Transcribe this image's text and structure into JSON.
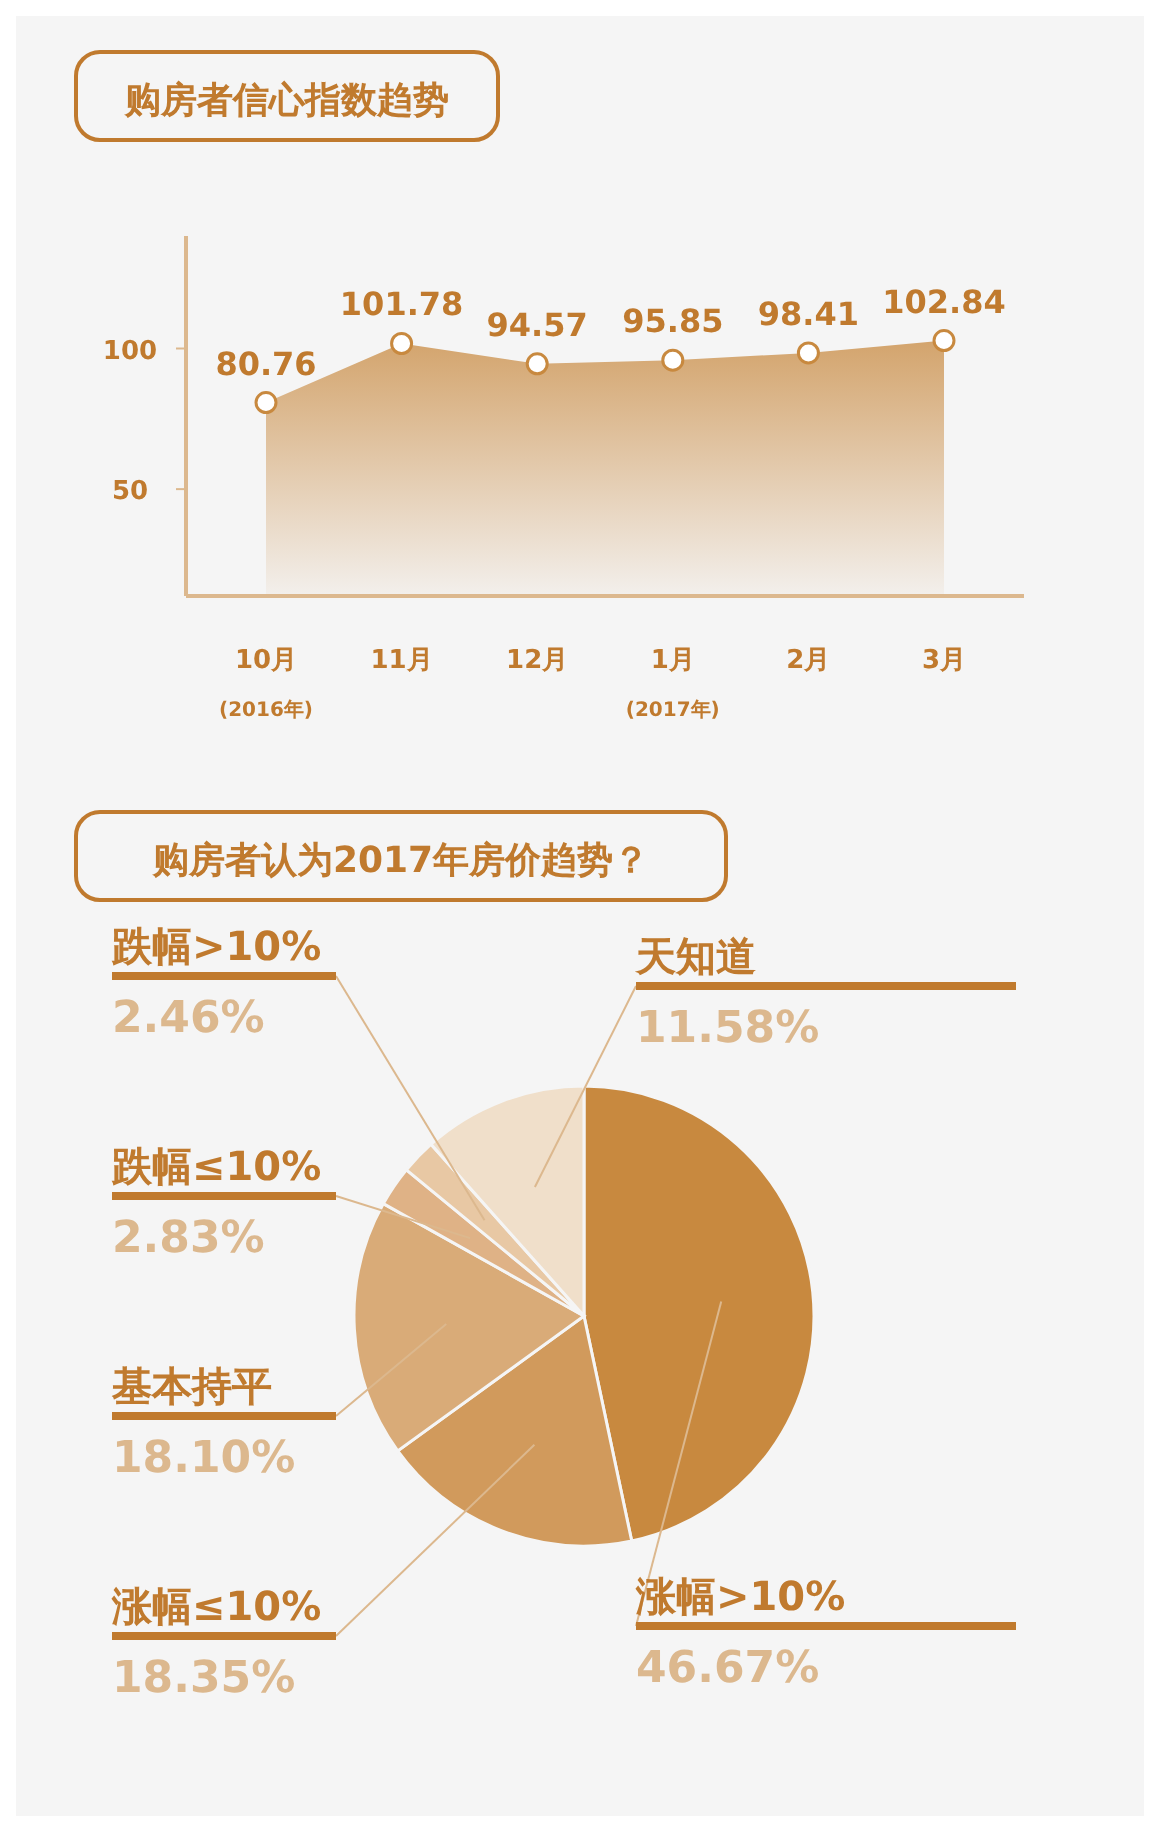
{
  "chart_data": [
    {
      "type": "area",
      "title": "购房者信心指数趋势",
      "categories": [
        "10月",
        "11月",
        "12月",
        "1月",
        "2月",
        "3月"
      ],
      "values": [
        80.76,
        101.78,
        94.57,
        95.85,
        98.41,
        102.84
      ],
      "color": "#c8893f",
      "ylim": [
        12,
        140
      ],
      "yticks": [
        50,
        100
      ],
      "data_labels": true,
      "marker": "circle",
      "grid": false,
      "annotations": [
        "(2016年)",
        "(2017年)"
      ]
    },
    {
      "type": "pie",
      "title": "购房者认为2017年房价趋势？",
      "categories": [
        "涨幅>10%",
        "涨幅≤10%",
        "基本持平",
        "跌幅≤10%",
        "跌幅>10%",
        "天知道"
      ],
      "values": [
        46.67,
        18.35,
        18.1,
        2.83,
        2.46,
        11.58
      ],
      "value_labels": [
        "46.67%",
        "18.35%",
        "18.10%",
        "2.83%",
        "2.46%",
        "11.58%"
      ],
      "colors": [
        "#c8893f",
        "#d19a5c",
        "#d9ab78",
        "#dfb286",
        "#e8c8a4",
        "#f0dfca"
      ]
    }
  ]
}
